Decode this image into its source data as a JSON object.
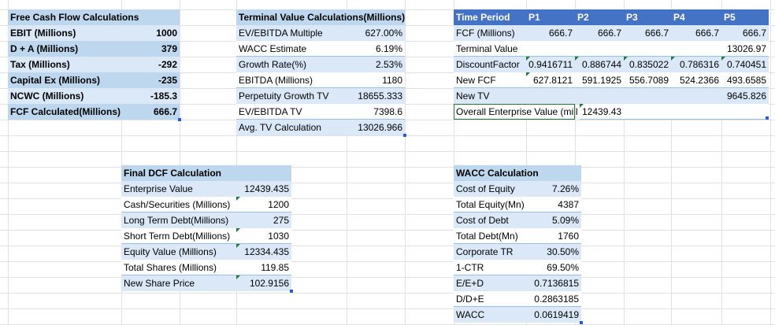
{
  "fcf": {
    "title": "Free Cash Flow Calculations",
    "rows": [
      {
        "label": "EBIT (Millions)",
        "value": "1000"
      },
      {
        "label": " D + A (Millions)",
        "value": "379"
      },
      {
        "label": "Tax (Millions)",
        "value": "-292"
      },
      {
        "label": "Capital Ex (Millions)",
        "value": "-235"
      },
      {
        "label": "NCWC (Millions)",
        "value": "-185.3"
      },
      {
        "label": "FCF Calculated(Millions)",
        "value": "666.7"
      }
    ]
  },
  "terminal": {
    "title": "Terminal Value Calculations(Millions)",
    "rows": [
      {
        "label": "EV/EBITDA Multiple",
        "value": "627.00%"
      },
      {
        "label": "WACC Estimate",
        "value": "6.19%"
      },
      {
        "label": "Growth Rate(%)",
        "value": "2.53%"
      },
      {
        "label": "EBITDA (Millions)",
        "value": "1180"
      },
      {
        "label": "Perpetuity Growth TV",
        "value": "18655.333"
      },
      {
        "label": "EV/EBITDA TV",
        "value": "7398.6"
      },
      {
        "label": "Avg. TV Calculation",
        "value": "13026.966"
      }
    ]
  },
  "periods": {
    "header_label": "Time Period",
    "header_cols": [
      "P1",
      "P2",
      "P3",
      "P4",
      "P5"
    ],
    "rows": [
      {
        "label": "FCF (Millions)",
        "values": [
          "666.7",
          "666.7",
          "666.7",
          "666.7",
          "666.7"
        ]
      },
      {
        "label": "Terminal Value",
        "values": [
          "",
          "",
          "",
          "",
          "13026.97"
        ]
      },
      {
        "label": "DiscountFactor",
        "values": [
          "0.9416711",
          "0.886744",
          "0.835022",
          "0.786316",
          "0.740451"
        ]
      },
      {
        "label": "New FCF",
        "values": [
          "627.8121",
          "591.1925",
          "556.7089",
          "524.2366",
          "493.6585"
        ]
      },
      {
        "label": "New TV",
        "values": [
          "",
          "",
          "",
          "",
          "9645.826"
        ]
      }
    ],
    "overall_label": "Overall Enterprise Value (mill",
    "overall_value": "12439.43"
  },
  "dcf": {
    "title": "Final DCF Calculation",
    "rows": [
      {
        "label": "Enterprise Value",
        "value": "12439.435"
      },
      {
        "label": "Cash/Securities (Millions)",
        "value": "1200"
      },
      {
        "label": "Long Term Debt(Millions)",
        "value": "275"
      },
      {
        "label": "Short Term Debt(Millions)",
        "value": "1030"
      },
      {
        "label": "Equity Value (Millions)",
        "value": "12334.435"
      },
      {
        "label": "Total Shares (Millions)",
        "value": "119.85"
      },
      {
        "label": "New Share Price",
        "value": "102.9156"
      }
    ]
  },
  "wacc": {
    "title": "WACC Calculation",
    "rows": [
      {
        "label": "Cost of Equity",
        "value": "7.26%"
      },
      {
        "label": "Total Equity(Mn)",
        "value": "4387"
      },
      {
        "label": "Cost of Debt",
        "value": "5.09%"
      },
      {
        "label": "Total Debt(Mn)",
        "value": "1760"
      },
      {
        "label": "Corporate TR",
        "value": "30.50%"
      },
      {
        "label": "1-CTR",
        "value": "69.50%"
      },
      {
        "label": "E/E+D",
        "value": "0.7136815"
      },
      {
        "label": "D/D+E",
        "value": "0.2863185"
      },
      {
        "label": "WACC",
        "value": "0.0619419"
      }
    ]
  },
  "colors": {
    "header_blue": "#4472c4",
    "light_blue": "#dae8f8",
    "medium_blue": "#bdd7ee",
    "gridline": "#e1e1e1",
    "note_green": "#1f7a3a"
  }
}
